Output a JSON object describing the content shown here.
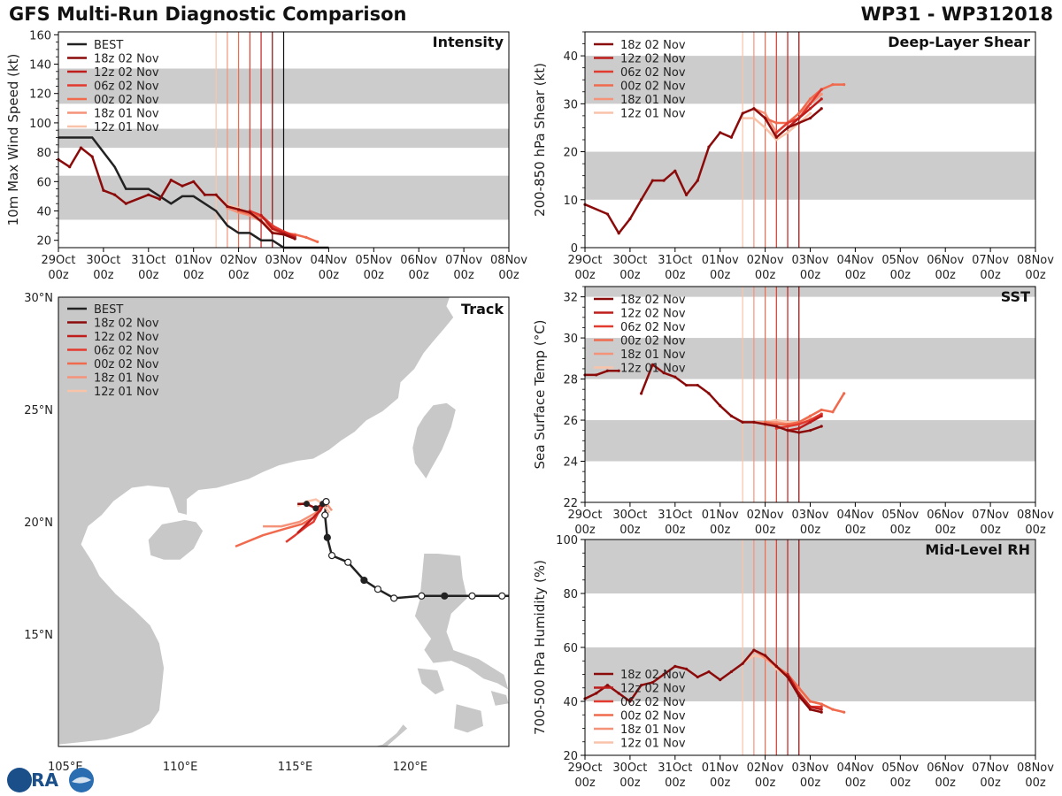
{
  "header": {
    "title": "GFS Multi-Run Diagnostic Comparison",
    "storm_id": "WP31 - WP312018"
  },
  "logo": {
    "text": "CIRA"
  },
  "colors": {
    "best": "#222222",
    "runs": [
      "#8b0a0a",
      "#bf1c1c",
      "#e23a2e",
      "#f06a4e",
      "#f4937a",
      "#f9c3aa"
    ],
    "band": "#cccccc",
    "land": "#c8c8c8",
    "ocean": "#ffffff"
  },
  "chart_data": [
    {
      "id": "intensity",
      "type": "line",
      "title": "Intensity",
      "ylabel": "10m Max Wind Speed (kt)",
      "ylim": [
        15,
        162
      ],
      "yticks": [
        20,
        40,
        60,
        80,
        100,
        120,
        140,
        160
      ],
      "bands": [
        [
          34,
          64
        ],
        [
          83,
          96
        ],
        [
          113,
          137
        ]
      ],
      "legend": [
        "BEST",
        "18z 02 Nov",
        "12z 02 Nov",
        "06z 02 Nov",
        "00z 02 Nov",
        "18z 01 Nov",
        "12z 01 Nov"
      ],
      "best": {
        "x": [
          0,
          0.75,
          1.25,
          1.5,
          2.0,
          2.5,
          2.75,
          3.0,
          3.5,
          3.75,
          4.0,
          4.25,
          4.5,
          4.75,
          5.0,
          5.25,
          5.5,
          5.75,
          6.0
        ],
        "y": [
          90,
          90,
          70,
          55,
          55,
          45,
          50,
          50,
          40,
          30,
          25,
          25,
          20,
          20,
          15,
          15,
          15,
          15,
          15
        ]
      },
      "runs": [
        {
          "name": "18z 02 Nov",
          "x": [
            0,
            0.25,
            0.5,
            0.75,
            1.0,
            1.25,
            1.5,
            2.0,
            2.25,
            2.5,
            2.75,
            3.0,
            3.25,
            3.5,
            3.75,
            4.0,
            4.25,
            4.5,
            4.75,
            5.0,
            5.25
          ],
          "y": [
            75,
            70,
            83,
            77,
            54,
            51,
            45,
            51,
            48,
            61,
            57,
            60,
            51,
            51,
            43,
            41,
            39,
            33,
            25,
            24,
            21
          ]
        },
        {
          "name": "12z 02 Nov",
          "x": [
            4.5,
            4.75,
            5.0,
            5.25
          ],
          "y": [
            37,
            28,
            25,
            22
          ]
        },
        {
          "name": "06z 02 Nov",
          "x": [
            4.25,
            4.5,
            4.75,
            5.0,
            5.25
          ],
          "y": [
            40,
            37,
            30,
            26,
            23
          ]
        },
        {
          "name": "00z 02 Nov",
          "x": [
            4.0,
            4.25,
            4.5,
            4.75,
            5.0,
            5.25,
            5.5,
            5.75
          ],
          "y": [
            40,
            38,
            36,
            30,
            25,
            24,
            22,
            19
          ]
        },
        {
          "name": "18z 01 Nov",
          "x": [
            3.75,
            4.0,
            4.25,
            4.5,
            4.75,
            5.0,
            5.25
          ],
          "y": [
            42,
            39,
            37,
            33,
            28,
            24,
            23
          ]
        },
        {
          "name": "12z 01 Nov",
          "x": [
            3.5,
            3.75,
            4.0,
            4.25,
            4.5,
            4.75,
            5.0
          ],
          "y": [
            50,
            44,
            42,
            38,
            33,
            27,
            24
          ]
        }
      ]
    },
    {
      "id": "shear",
      "type": "line",
      "title": "Deep-Layer Shear",
      "ylabel": "200-850 hPa Shear (kt)",
      "ylim": [
        0,
        45
      ],
      "yticks": [
        0,
        10,
        20,
        30,
        40
      ],
      "bands": [
        [
          10,
          20
        ],
        [
          30,
          40
        ]
      ],
      "legend": [
        "18z 02 Nov",
        "12z 02 Nov",
        "06z 02 Nov",
        "00z 02 Nov",
        "18z 01 Nov",
        "12z 01 Nov"
      ],
      "runs": [
        {
          "name": "18z 02 Nov",
          "x": [
            0,
            0.5,
            0.75,
            1.0,
            1.25,
            1.5,
            1.75,
            2.0,
            2.25,
            2.5,
            2.75,
            3.0,
            3.25,
            3.5,
            3.75,
            4.0,
            4.25,
            4.5,
            4.75,
            5.0,
            5.25
          ],
          "y": [
            9,
            7,
            3,
            6,
            10,
            14,
            14,
            16,
            11,
            14,
            21,
            24,
            23,
            28,
            29,
            27,
            23,
            25,
            26,
            27,
            29
          ]
        },
        {
          "name": "12z 02 Nov",
          "x": [
            4.5,
            4.75,
            5.0,
            5.25
          ],
          "y": [
            25,
            27,
            29,
            31
          ]
        },
        {
          "name": "06z 02 Nov",
          "x": [
            4.25,
            4.5,
            4.75,
            5.0,
            5.25
          ],
          "y": [
            24,
            26,
            27,
            30,
            33
          ]
        },
        {
          "name": "00z 02 Nov",
          "x": [
            4.0,
            4.25,
            4.5,
            4.75,
            5.0,
            5.25,
            5.5,
            5.75
          ],
          "y": [
            27,
            26,
            26,
            28,
            31,
            33,
            34,
            34
          ]
        },
        {
          "name": "18z 01 Nov",
          "x": [
            3.75,
            4.0,
            4.25,
            4.5,
            4.75,
            5.0,
            5.25
          ],
          "y": [
            29,
            28,
            24,
            26,
            28,
            30,
            32
          ]
        },
        {
          "name": "12z 01 Nov",
          "x": [
            3.5,
            3.75,
            4.0,
            4.25,
            4.5,
            4.75,
            5.0
          ],
          "y": [
            27,
            27,
            25,
            22.5,
            24,
            26,
            28
          ]
        }
      ]
    },
    {
      "id": "sst",
      "type": "line",
      "title": "SST",
      "ylabel": "Sea Surface Temp (°C)",
      "ylim": [
        22,
        32.5
      ],
      "yticks": [
        22,
        24,
        26,
        28,
        30,
        32
      ],
      "bands": [
        [
          24,
          26
        ],
        [
          28,
          30
        ],
        [
          32,
          32.5
        ]
      ],
      "legend": [
        "18z 02 Nov",
        "12z 02 Nov",
        "06z 02 Nov",
        "00z 02 Nov",
        "18z 01 Nov",
        "12z 01 Nov"
      ],
      "runs": [
        {
          "name": "18z 02 Nov",
          "x": [
            0,
            0.25,
            0.5,
            0.75,
            null,
            1.25,
            1.5,
            1.75,
            2.0,
            2.25,
            2.5,
            2.75,
            3.0,
            3.25,
            3.5,
            3.75,
            4.0,
            4.25,
            4.5,
            4.75,
            5.0,
            5.25
          ],
          "y": [
            28.2,
            28.2,
            28.4,
            28.4,
            null,
            27.3,
            28.7,
            28.3,
            28.1,
            27.7,
            27.7,
            27.3,
            26.7,
            26.2,
            25.9,
            25.9,
            25.8,
            25.7,
            25.5,
            25.4,
            25.5,
            25.7
          ]
        },
        {
          "name": "12z 02 Nov",
          "x": [
            4.5,
            4.75,
            5.0,
            5.25
          ],
          "y": [
            25.5,
            25.6,
            25.9,
            26.2
          ]
        },
        {
          "name": "06z 02 Nov",
          "x": [
            4.25,
            4.5,
            4.75,
            5.0,
            5.25
          ],
          "y": [
            25.6,
            25.7,
            25.8,
            26.0,
            26.3
          ]
        },
        {
          "name": "00z 02 Nov",
          "x": [
            4.0,
            4.25,
            4.5,
            4.75,
            5.0,
            5.25,
            5.5,
            5.75
          ],
          "y": [
            25.9,
            25.8,
            25.8,
            25.9,
            26.2,
            26.5,
            26.4,
            27.3
          ]
        },
        {
          "name": "18z 01 Nov",
          "x": [
            3.75,
            4.0,
            4.25,
            4.5,
            4.75,
            5.0,
            5.25
          ],
          "y": [
            25.9,
            25.9,
            25.9,
            25.8,
            25.8,
            26.0,
            26.3
          ]
        },
        {
          "name": "12z 01 Nov",
          "x": [
            3.5,
            3.75,
            4.0,
            4.25,
            4.5,
            4.75,
            5.0
          ],
          "y": [
            25.9,
            25.9,
            25.9,
            26.0,
            25.9,
            25.9,
            26.1
          ]
        }
      ]
    },
    {
      "id": "rh",
      "type": "line",
      "title": "Mid-Level RH",
      "ylabel": "700-500 hPa Humidity (%)",
      "ylim": [
        20,
        100
      ],
      "yticks": [
        20,
        40,
        60,
        80,
        100
      ],
      "bands": [
        [
          40,
          60
        ],
        [
          80,
          100
        ]
      ],
      "legend": [
        "18z 02 Nov",
        "12z 02 Nov",
        "06z 02 Nov",
        "00z 02 Nov",
        "18z 01 Nov",
        "12z 01 Nov"
      ],
      "runs": [
        {
          "name": "18z 02 Nov",
          "x": [
            0,
            0.25,
            0.5,
            0.75,
            1.0,
            1.25,
            1.5,
            1.75,
            2.0,
            2.25,
            2.5,
            2.75,
            3.0,
            3.25,
            3.5,
            3.75,
            4.0,
            4.25,
            4.5,
            4.75,
            5.0,
            5.25
          ],
          "y": [
            41,
            43,
            46,
            43,
            40,
            46,
            47,
            50,
            53,
            52,
            49,
            51,
            48,
            51,
            54,
            59,
            57,
            53,
            49,
            42,
            37,
            36
          ]
        },
        {
          "name": "12z 02 Nov",
          "x": [
            4.5,
            4.75,
            5.0,
            5.25
          ],
          "y": [
            50,
            43,
            38,
            37
          ]
        },
        {
          "name": "06z 02 Nov",
          "x": [
            4.25,
            4.5,
            4.75,
            5.0,
            5.25
          ],
          "y": [
            53,
            49,
            43,
            38,
            38
          ]
        },
        {
          "name": "00z 02 Nov",
          "x": [
            4.0,
            4.25,
            4.5,
            4.75,
            5.0,
            5.25,
            5.5,
            5.75
          ],
          "y": [
            57,
            53,
            50,
            45,
            40,
            39,
            37,
            36
          ]
        },
        {
          "name": "18z 01 Nov",
          "x": [
            3.75,
            4.0,
            4.25,
            4.5,
            4.75,
            5.0,
            5.25
          ],
          "y": [
            59,
            56,
            53,
            50,
            45,
            40,
            39
          ]
        },
        {
          "name": "12z 01 Nov",
          "x": [
            3.5,
            3.75,
            4.0,
            4.25,
            4.5,
            4.75,
            5.0
          ],
          "y": [
            54,
            57,
            56,
            52,
            49,
            44,
            40
          ]
        }
      ]
    },
    {
      "id": "track",
      "type": "scatter",
      "title": "Track",
      "lon_range": [
        104.7,
        124.3
      ],
      "lat_range": [
        10.0,
        30.0
      ],
      "lat_ticks": [
        {
          "v": 30,
          "label": "30°N"
        },
        {
          "v": 25,
          "label": "25°N"
        },
        {
          "v": 20,
          "label": "20°N"
        },
        {
          "v": 15,
          "label": "15°N"
        }
      ],
      "lon_ticks": [
        {
          "v": 105,
          "label": "105°E"
        },
        {
          "v": 110,
          "label": "110°E"
        },
        {
          "v": 115,
          "label": "115°E"
        },
        {
          "v": 120,
          "label": "120°E"
        }
      ],
      "legend": [
        "BEST",
        "18z 02 Nov",
        "12z 02 Nov",
        "06z 02 Nov",
        "00z 02 Nov",
        "18z 01 Nov",
        "12z 01 Nov"
      ],
      "best": {
        "lon": [
          124.5,
          124.0,
          122.7,
          121.5,
          120.5,
          119.3,
          118.6,
          118.0,
          117.3,
          116.6,
          116.4,
          116.3,
          116.35
        ],
        "lat": [
          16.7,
          16.7,
          16.7,
          16.7,
          16.7,
          16.6,
          17.0,
          17.4,
          18.2,
          18.5,
          19.3,
          20.3,
          20.9
        ],
        "filled": [
          false,
          false,
          false,
          true,
          false,
          false,
          false,
          true,
          false,
          false,
          true,
          false,
          false
        ]
      },
      "runs": [
        {
          "name": "18z 02 Nov",
          "lon": [
            116.4,
            116.2,
            115.9,
            115.5,
            115.1
          ],
          "lat": [
            20.9,
            20.8,
            20.6,
            20.8,
            20.8
          ]
        },
        {
          "name": "12z 02 Nov",
          "lon": [
            116.3,
            116.1,
            115.8,
            115.5,
            115.1
          ],
          "lat": [
            20.9,
            20.5,
            20.2,
            19.9,
            19.5
          ]
        },
        {
          "name": "06z 02 Nov",
          "lon": [
            116.4,
            116.2,
            116.0,
            115.8,
            115.5,
            115.0,
            114.6
          ],
          "lat": [
            21.0,
            20.7,
            20.4,
            20.0,
            19.8,
            19.4,
            19.1
          ]
        },
        {
          "name": "00z 02 Nov",
          "lon": [
            116.5,
            116.1,
            115.8,
            115.3,
            114.6,
            113.6,
            112.4
          ],
          "lat": [
            20.9,
            20.6,
            20.2,
            19.9,
            19.7,
            19.4,
            18.9
          ]
        },
        {
          "name": "18z 01 Nov",
          "lon": [
            116.6,
            116.3,
            115.9,
            115.2,
            114.4,
            113.6
          ],
          "lat": [
            20.5,
            20.9,
            20.4,
            20.0,
            19.8,
            19.8
          ]
        },
        {
          "name": "12z 01 Nov",
          "lon": [
            116.5,
            116.2,
            115.9,
            115.5,
            115.1
          ],
          "lat": [
            20.4,
            20.8,
            21.0,
            20.9,
            20.7
          ]
        }
      ]
    }
  ],
  "time_axis": {
    "range": [
      0,
      10
    ],
    "ticks": [
      {
        "v": 0,
        "day": "29Oct",
        "hour": "00z"
      },
      {
        "v": 1,
        "day": "30Oct",
        "hour": "00z"
      },
      {
        "v": 2,
        "day": "31Oct",
        "hour": "00z"
      },
      {
        "v": 3,
        "day": "01Nov",
        "hour": "00z"
      },
      {
        "v": 4,
        "day": "02Nov",
        "hour": "00z"
      },
      {
        "v": 5,
        "day": "03Nov",
        "hour": "00z"
      },
      {
        "v": 6,
        "day": "04Nov",
        "hour": "00z"
      },
      {
        "v": 7,
        "day": "05Nov",
        "hour": "00z"
      },
      {
        "v": 8,
        "day": "06Nov",
        "hour": "00z"
      },
      {
        "v": 9,
        "day": "07Nov",
        "hour": "00z"
      },
      {
        "v": 10,
        "day": "08Nov",
        "hour": "00z"
      }
    ],
    "init_times": [
      3.5,
      3.75,
      4.0,
      4.25,
      4.5,
      4.75
    ],
    "best_end": 5.0
  }
}
